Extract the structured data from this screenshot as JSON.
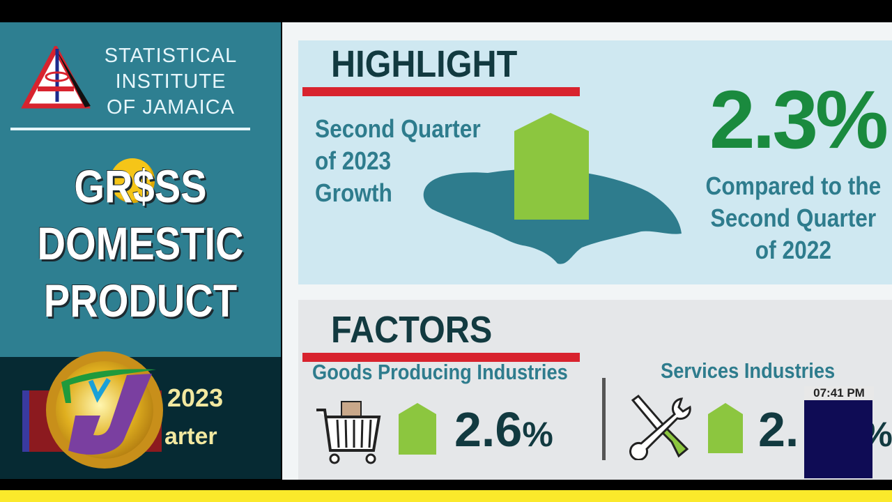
{
  "left_panel": {
    "org_lines": [
      "STATISTICAL",
      "INSTITUTE",
      "OF JAMAICA"
    ],
    "title_lines": [
      "GR$SS",
      "DOMESTIC",
      "PRODUCT"
    ],
    "title_part1": "GR",
    "title_part2": "SS",
    "coin_symbol": "$",
    "period_year": "2023",
    "period_quarter": "arter"
  },
  "highlight": {
    "heading": "HIGHLIGHT",
    "label_lines": [
      "Second Quarter",
      "of 2023",
      "Growth"
    ],
    "value": "2.3%",
    "value_number": "2.3",
    "value_unit": "%",
    "compare_lines": [
      "Compared to the",
      "Second Quarter",
      "of 2022"
    ]
  },
  "factors": {
    "heading": "FACTORS",
    "goods": {
      "label": "Goods Producing Industries",
      "value_number": "2.6",
      "value_unit": "%",
      "icon": "shopping-cart-icon"
    },
    "services": {
      "label": "Services Industries",
      "value_number": "2.",
      "value_unit": "%",
      "icon": "tools-icon"
    }
  },
  "overlay": {
    "clock": "07:41 PM",
    "channel_logo": "TVJ"
  },
  "colors": {
    "teal": "#2e7f91",
    "green": "#1a8a3e",
    "arrow_green": "#8cc63f",
    "red": "#d8232e",
    "ticker": "#fbe92b"
  }
}
